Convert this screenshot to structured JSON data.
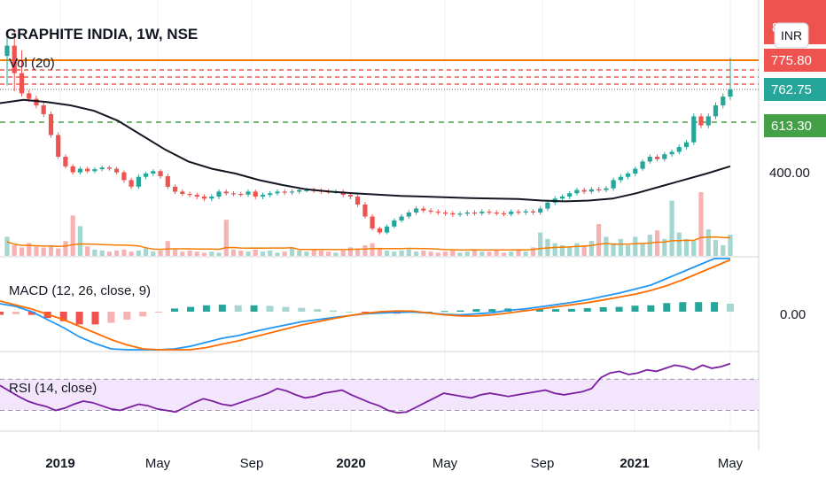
{
  "header": {
    "symbol_title": "GRAPHITE INDIA, 1W, NSE",
    "vol_label": "Vol (20)",
    "currency_button": "INR"
  },
  "colors": {
    "up": "#26a69a",
    "down": "#ef5350",
    "up_light": "#a5d6cf",
    "down_light": "#f7b3b2",
    "ma": "#131722",
    "vol_ma": "#f57c00",
    "resistance": "#f57c00",
    "red_levels": "#e53935",
    "green_level": "#43a047",
    "macd_line": "#2196f3",
    "signal_line": "#ff6d00",
    "rsi_line": "#7b1fa2",
    "rsi_band": "#f3e5fc",
    "axis_text": "#131722"
  },
  "chart_data": [
    {
      "type": "candlestick",
      "title": "GRAPHITE INDIA, 1W, NSE",
      "x_tick_labels": [
        "2019",
        "May",
        "Sep",
        "2020",
        "May",
        "Sep",
        "2021",
        "May"
      ],
      "y_tick_labels": [
        "400.00"
      ],
      "price_tags": [
        {
          "value": "775.80",
          "kind": "resistance"
        },
        {
          "value": "762.75",
          "kind": "last"
        },
        {
          "value": "613.30",
          "kind": "support"
        }
      ],
      "top_partial_label": "8",
      "weekly_close": [
        790,
        770,
        745,
        720,
        690,
        650,
        560,
        470,
        430,
        405,
        420,
        410,
        418,
        425,
        420,
        405,
        380,
        360,
        390,
        400,
        410,
        392,
        360,
        345,
        338,
        335,
        330,
        325,
        330,
        345,
        340,
        338,
        336,
        345,
        330,
        335,
        340,
        345,
        342,
        345,
        350,
        350,
        348,
        346,
        345,
        345,
        335,
        330,
        310,
        280,
        250,
        240,
        255,
        270,
        280,
        290,
        300,
        295,
        292,
        290,
        288,
        285,
        287,
        290,
        288,
        292,
        290,
        288,
        286,
        292,
        290,
        293,
        290,
        300,
        315,
        325,
        330,
        340,
        350,
        345,
        352,
        350,
        355,
        380,
        390,
        400,
        420,
        450,
        470,
        460,
        480,
        490,
        510,
        530,
        640,
        600,
        640,
        690,
        730,
        762.75
      ],
      "moving_average": [
        700,
        715,
        705,
        690,
        665,
        620,
        560,
        500,
        450,
        420,
        400,
        380,
        365,
        352,
        345,
        340,
        336,
        332,
        330,
        328,
        326,
        325,
        324,
        320,
        318,
        320,
        325,
        340,
        360,
        380,
        400,
        430
      ],
      "weekly_volume": [
        18,
        10,
        8,
        12,
        9,
        8,
        10,
        7,
        14,
        38,
        28,
        9,
        6,
        5,
        4,
        5,
        6,
        4,
        5,
        7,
        4,
        5,
        14,
        6,
        4,
        5,
        4,
        3,
        4,
        3,
        34,
        6,
        5,
        4,
        6,
        4,
        5,
        3,
        4,
        8,
        5,
        4,
        6,
        5,
        4,
        3,
        5,
        8,
        6,
        10,
        12,
        7,
        5,
        4,
        5,
        6,
        4,
        5,
        4,
        3,
        4,
        5,
        3,
        4,
        6,
        4,
        4,
        5,
        3,
        4,
        6,
        4,
        8,
        22,
        16,
        12,
        10,
        8,
        12,
        9,
        14,
        30,
        18,
        12,
        16,
        10,
        18,
        12,
        20,
        24,
        16,
        52,
        22,
        16,
        14,
        60,
        25,
        15,
        10,
        20
      ]
    },
    {
      "type": "line",
      "title": "MACD (12, 26, close, 9)",
      "y_tick_labels": [
        "0.00"
      ],
      "macd": [
        30,
        20,
        0,
        -30,
        -60,
        -95,
        -120,
        -140,
        -150,
        -155,
        -150,
        -140,
        -130,
        -115,
        -100,
        -90,
        -75,
        -62,
        -50,
        -38,
        -30,
        -22,
        -15,
        -8,
        -5,
        -3,
        -1,
        -5,
        -10,
        -12,
        -8,
        -4,
        5,
        10,
        18,
        26,
        35,
        45,
        58,
        70,
        85,
        100,
        125,
        150,
        175,
        200,
        220
      ],
      "signal": [
        40,
        25,
        10,
        -10,
        -30,
        -55,
        -80,
        -105,
        -125,
        -140,
        -148,
        -150,
        -145,
        -135,
        -122,
        -110,
        -95,
        -80,
        -65,
        -50,
        -38,
        -26,
        -15,
        -6,
        0,
        3,
        2,
        -5,
        -12,
        -16,
        -16,
        -12,
        -5,
        3,
        10,
        18,
        26,
        34,
        44,
        55,
        66,
        80,
        98,
        120,
        145,
        170,
        195
      ],
      "histogram": [
        -10,
        -8,
        -10,
        -20,
        -30,
        -40,
        -40,
        -35,
        -25,
        -15,
        -2,
        10,
        15,
        20,
        22,
        20,
        20,
        18,
        15,
        12,
        8,
        4,
        0,
        -2,
        -5,
        -6,
        -3,
        0,
        2,
        4,
        8,
        8,
        10,
        7,
        8,
        8,
        9,
        11,
        14,
        15,
        19,
        20,
        27,
        30,
        30,
        30,
        25
      ]
    },
    {
      "type": "line",
      "title": "RSI (14, close)",
      "band": [
        30,
        70
      ],
      "rsi": [
        62,
        55,
        48,
        42,
        38,
        35,
        30,
        33,
        38,
        42,
        40,
        36,
        32,
        30,
        34,
        38,
        36,
        32,
        30,
        28,
        34,
        40,
        45,
        42,
        38,
        36,
        40,
        44,
        48,
        52,
        58,
        55,
        50,
        46,
        48,
        52,
        54,
        56,
        50,
        45,
        40,
        36,
        30,
        27,
        28,
        34,
        40,
        46,
        52,
        50,
        48,
        46,
        50,
        52,
        50,
        48,
        50,
        52,
        54,
        56,
        52,
        50,
        52,
        54,
        58,
        72,
        78,
        80,
        76,
        78,
        82,
        80,
        84,
        88,
        86,
        82,
        88,
        84,
        86,
        90
      ]
    }
  ]
}
